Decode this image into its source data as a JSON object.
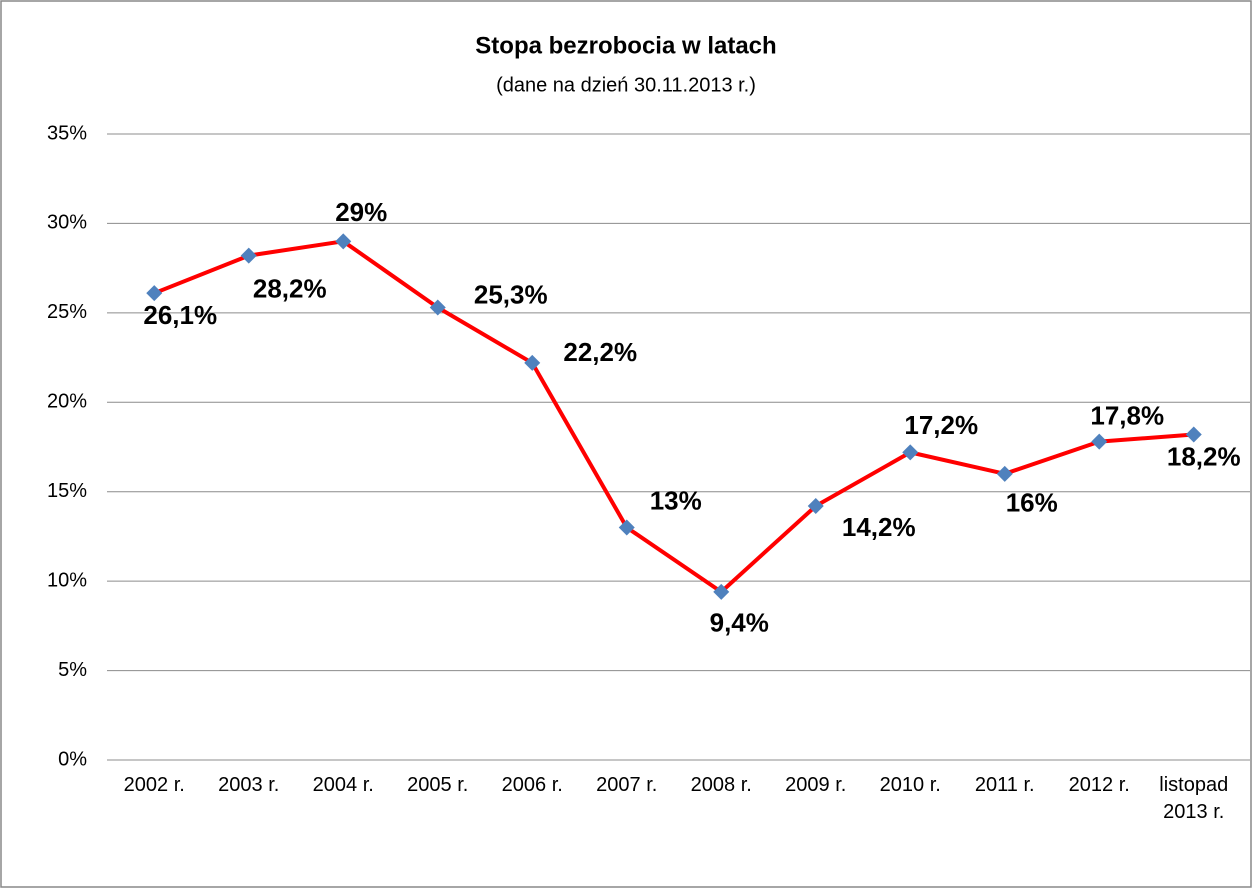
{
  "chart_data": {
    "type": "line",
    "title": "Stopa bezrobocia w latach",
    "subtitle": "(dane na dzień 30.11.2013 r.)",
    "categories": [
      "2002 r.",
      "2003 r.",
      "2004 r.",
      "2005 r.",
      "2006 r.",
      "2007 r.",
      "2008 r.",
      "2009 r.",
      "2010 r.",
      "2011 r.",
      "2012 r.",
      "listopad 2013 r."
    ],
    "series": [
      {
        "color": "#ff0000",
        "marker_color": "#4f81bd",
        "values": [
          26.1,
          28.2,
          29,
          25.3,
          22.2,
          13,
          9.4,
          14.2,
          17.2,
          16,
          17.8,
          18.2
        ],
        "value_labels": [
          "26,1%",
          "28,2%",
          "29%",
          "25,3%",
          "22,2%",
          "13%",
          "9,4%",
          "14,2%",
          "17,2%",
          "16%",
          "17,8%",
          "18,2%"
        ]
      }
    ],
    "ylim": [
      0,
      35
    ],
    "yticks": [
      {
        "value": 0,
        "label": "0%"
      },
      {
        "value": 5,
        "label": "5%"
      },
      {
        "value": 10,
        "label": "10%"
      },
      {
        "value": 15,
        "label": "15%"
      },
      {
        "value": 20,
        "label": "20%"
      },
      {
        "value": 25,
        "label": "25%"
      },
      {
        "value": 30,
        "label": "30%"
      },
      {
        "value": 35,
        "label": "35%"
      }
    ],
    "grid": true
  }
}
